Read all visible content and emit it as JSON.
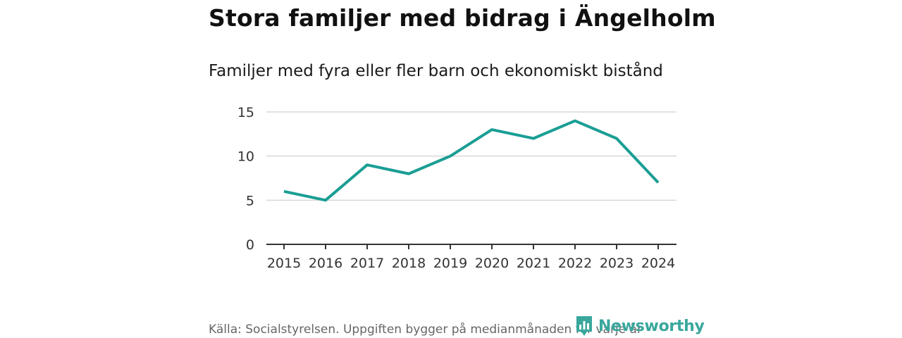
{
  "header": {
    "title": "Stora familjer med bidrag i Ängelholm",
    "subtitle": "Familjer med fyra eller fler barn och ekonomiskt bistånd"
  },
  "footer": {
    "source": "Källa: Socialstyrelsen. Uppgiften bygger på medianmånaden för varje år",
    "brand": "Newsworthy"
  },
  "colors": {
    "line": "#1a9e94",
    "grid": "#d9d9d9",
    "axis": "#333333",
    "brand": "#3aa79c"
  },
  "chart_data": {
    "type": "line",
    "title": "Stora familjer med bidrag i Ängelholm",
    "subtitle": "Familjer med fyra eller fler barn och ekonomiskt bistånd",
    "xlabel": "",
    "ylabel": "",
    "categories": [
      "2015",
      "2016",
      "2017",
      "2018",
      "2019",
      "2020",
      "2021",
      "2022",
      "2023",
      "2024"
    ],
    "series": [
      {
        "name": "Familjer med fyra eller fler barn och ekonomiskt bistånd",
        "values": [
          6,
          5,
          9,
          8,
          10,
          13,
          12,
          14,
          12,
          7
        ]
      }
    ],
    "yticks": [
      0,
      5,
      10,
      15
    ],
    "ylim": [
      0,
      15
    ],
    "grid": true,
    "legend": "none"
  }
}
